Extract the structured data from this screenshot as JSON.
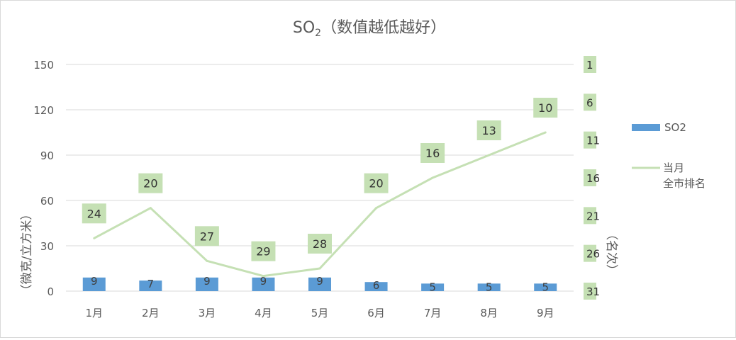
{
  "chart_data": {
    "type": "bar",
    "title": "SO",
    "title_sub": "2",
    "title_suffix": "（数值越低越好）",
    "categories": [
      "1月",
      "2月",
      "3月",
      "4月",
      "5月",
      "6月",
      "7月",
      "8月",
      "9月"
    ],
    "series": [
      {
        "name": "SO2",
        "type": "bar",
        "axis": "left",
        "color": "#5b9bd5",
        "values": [
          9,
          7,
          9,
          9,
          9,
          6,
          5,
          5,
          5
        ]
      },
      {
        "name": "当月\n全市排名",
        "name_lines": [
          "当月",
          "全市排名"
        ],
        "type": "line",
        "axis": "right",
        "color": "#c5e0b4",
        "values": [
          24,
          20,
          27,
          29,
          28,
          20,
          16,
          13,
          10
        ]
      }
    ],
    "y_left": {
      "label": "（微克/立方米）",
      "min": 0,
      "max": 150,
      "ticks": [
        0,
        30,
        60,
        90,
        120,
        150
      ]
    },
    "y_right": {
      "label": "（名次）",
      "min": 1,
      "max": 31,
      "reversed": true,
      "ticks": [
        1,
        6,
        11,
        16,
        21,
        26,
        31
      ]
    },
    "grid": true,
    "legend_position": "right",
    "label_color": "#c5e0b4"
  }
}
